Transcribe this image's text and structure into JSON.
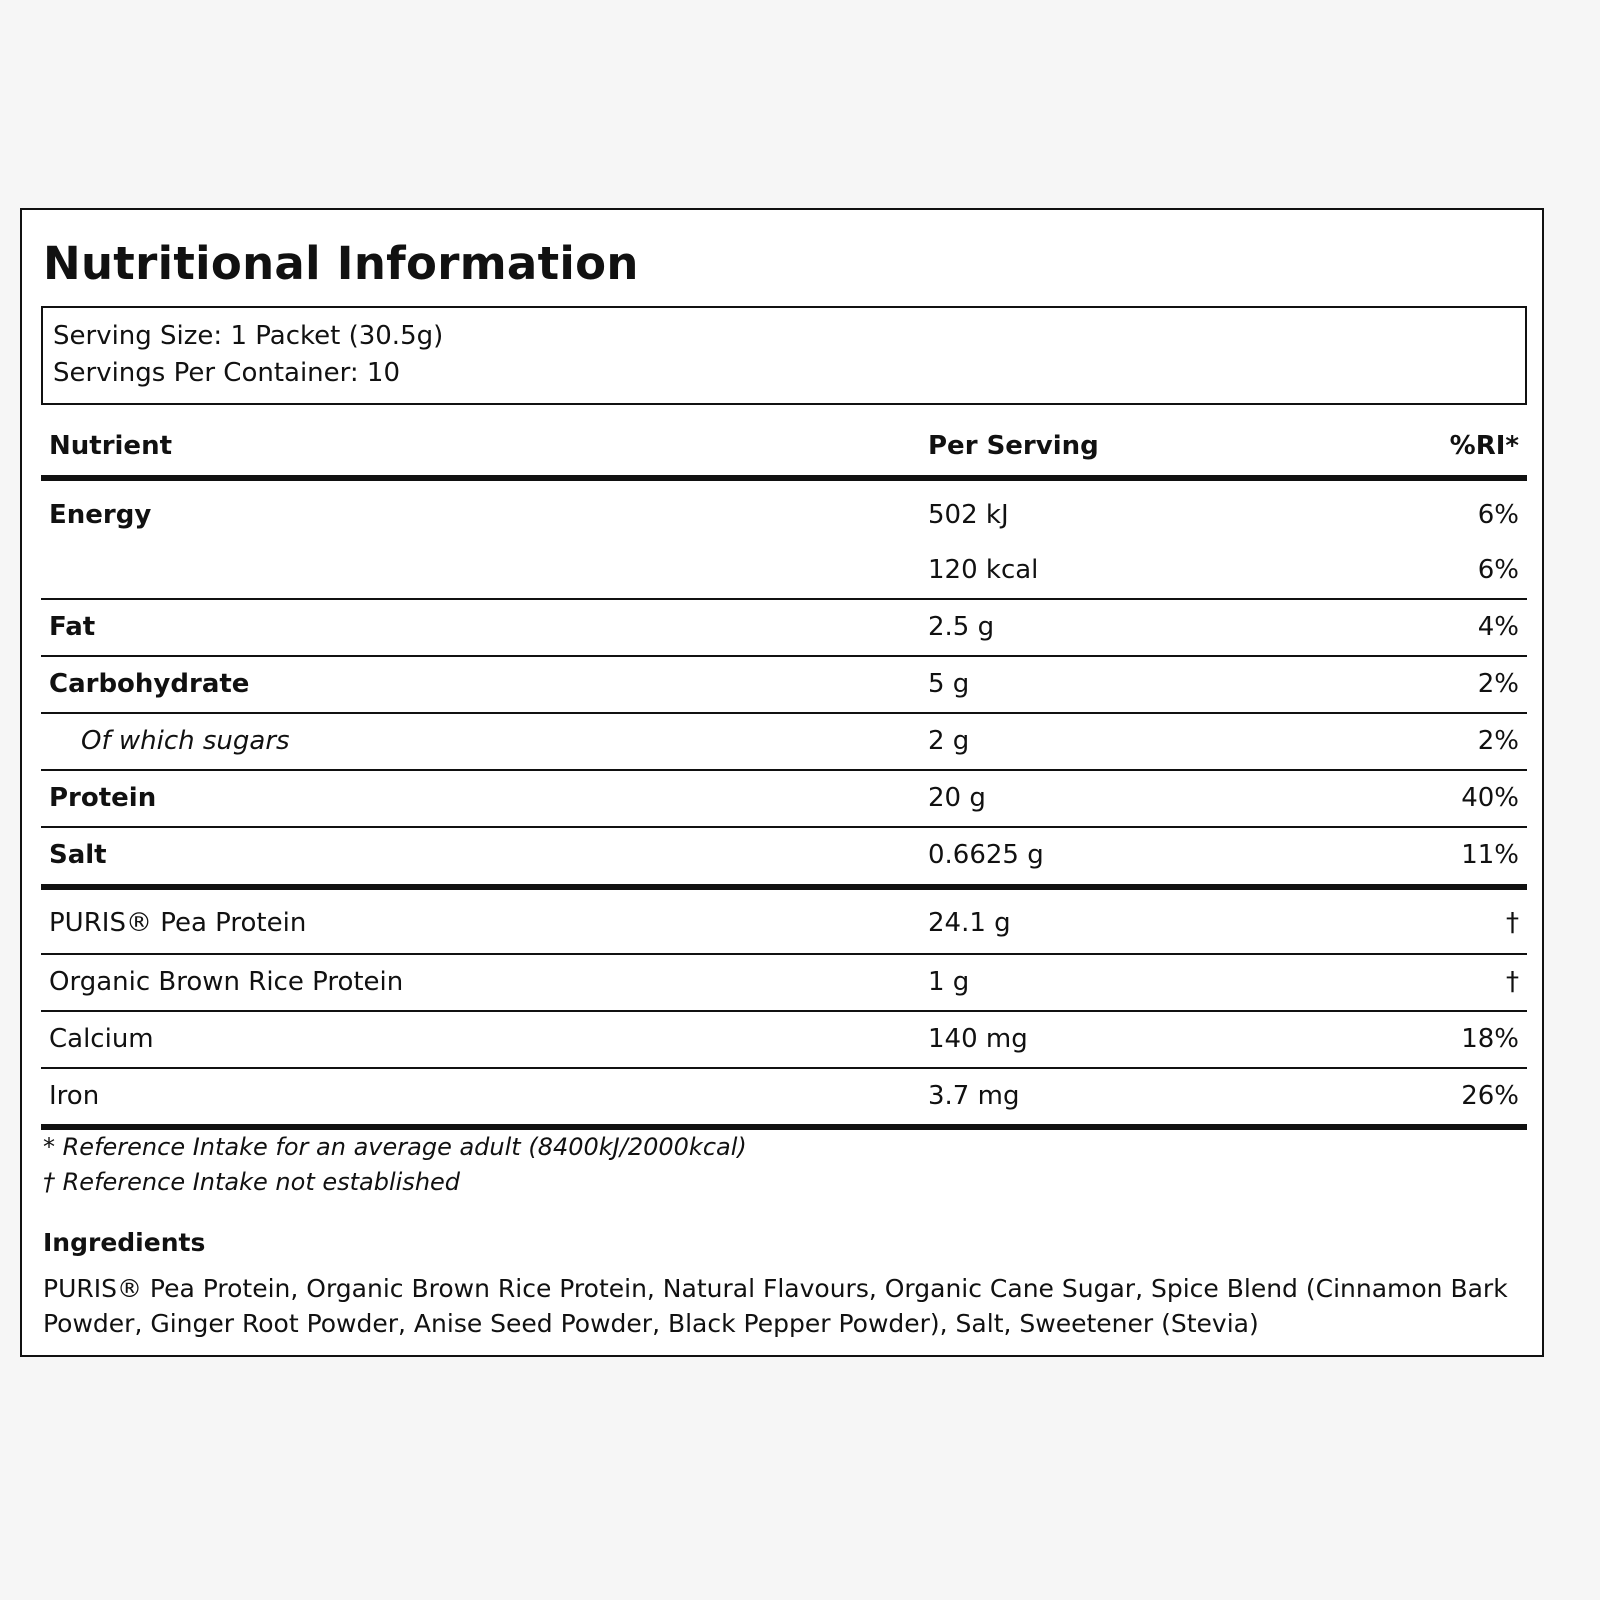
{
  "title": "Nutritional Information",
  "serving": {
    "size": "Serving Size: 1 Packet (30.5g)",
    "per_container": "Servings Per Container: 10"
  },
  "table": {
    "headers": {
      "nutrient": "Nutrient",
      "per_serving": "Per Serving",
      "ri": "%RI*"
    },
    "energy": {
      "name": "Energy",
      "kj": "502 kJ",
      "kj_ri": "6%",
      "kcal": "120 kcal",
      "kcal_ri": "6%"
    },
    "rows": [
      {
        "name": "Fat",
        "value": "2.5 g",
        "ri": "4%"
      },
      {
        "name": "Carbohydrate",
        "value": "5 g",
        "ri": "2%"
      },
      {
        "name": "Of which sugars",
        "value": "2 g",
        "ri": "2%"
      },
      {
        "name": "Protein",
        "value": "20 g",
        "ri": "40%"
      },
      {
        "name": "Salt",
        "value": "0.6625 g",
        "ri": "11%"
      }
    ],
    "extras": [
      {
        "name": "PURIS® Pea Protein",
        "value": "24.1 g",
        "ri": "†"
      },
      {
        "name": "Organic Brown Rice Protein",
        "value": "1 g",
        "ri": "†"
      },
      {
        "name": "Calcium",
        "value": "140 mg",
        "ri": "18%"
      },
      {
        "name": "Iron",
        "value": "3.7 mg",
        "ri": "26%"
      }
    ]
  },
  "footnotes": {
    "ri_note": "* Reference Intake for an average adult (8400kJ/2000kcal)",
    "dagger_note": "† Reference Intake not established"
  },
  "ingredients": {
    "heading": "Ingredients",
    "text": "PURIS® Pea Protein, Organic Brown Rice Protein, Natural Flavours, Organic Cane Sugar, Spice Blend (Cinnamon Bark Powder, Ginger Root Powder, Anise Seed Powder, Black Pepper Powder), Salt, Sweetener (Stevia)"
  }
}
